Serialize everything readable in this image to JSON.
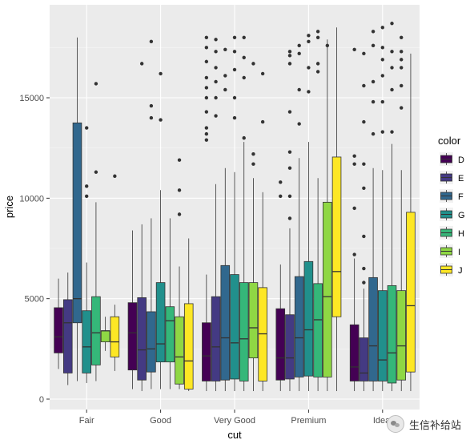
{
  "watermark": {
    "text": "生信补给站",
    "icon": "wechat-icon"
  },
  "chart_data": {
    "type": "boxplot",
    "xlabel": "cut",
    "ylabel": "price",
    "ylim": [
      0,
      19000
    ],
    "yticks": [
      0,
      5000,
      10000,
      15000
    ],
    "grid": true,
    "legend_title": "color",
    "legend_position": "right",
    "categories": [
      "Fair",
      "Good",
      "Very Good",
      "Premium",
      "Ideal"
    ],
    "series": [
      {
        "name": "D",
        "color": "#440154",
        "boxes": [
          {
            "min": 1500,
            "q1": 2300,
            "median": 3100,
            "q3": 4550,
            "max": 6000,
            "outliers": []
          },
          {
            "min": 500,
            "q1": 1450,
            "median": 3300,
            "q3": 4800,
            "max": 8400,
            "outliers": []
          },
          {
            "min": 400,
            "q1": 900,
            "median": 2150,
            "q3": 3800,
            "max": 6200,
            "outliers": [
              18000,
              17500,
              16800,
              16000,
              15500,
              15000,
              14300,
              13500,
              13200,
              12900
            ]
          },
          {
            "min": 400,
            "q1": 950,
            "median": 2050,
            "q3": 4500,
            "max": 6700,
            "outliers": [
              10800,
              10100
            ]
          },
          {
            "min": 400,
            "q1": 900,
            "median": 1600,
            "q3": 3700,
            "max": 7000,
            "outliers": [
              17400,
              12100,
              11700,
              9500,
              7200
            ]
          }
        ]
      },
      {
        "name": "E",
        "color": "#443A83",
        "boxes": [
          {
            "min": 700,
            "q1": 1300,
            "median": 3800,
            "q3": 4950,
            "max": 6300,
            "outliers": []
          },
          {
            "min": 400,
            "q1": 950,
            "median": 2450,
            "q3": 5050,
            "max": 8700,
            "outliers": [
              16700
            ]
          },
          {
            "min": 400,
            "q1": 900,
            "median": 2600,
            "q3": 5100,
            "max": 10700,
            "outliers": [
              17900,
              17300,
              16500,
              15800,
              15000,
              14100
            ]
          },
          {
            "min": 400,
            "q1": 1000,
            "median": 2050,
            "q3": 4200,
            "max": 8500,
            "outliers": [
              17300,
              17100,
              16700,
              14300,
              12300,
              11500,
              10100,
              9000
            ]
          },
          {
            "min": 400,
            "q1": 900,
            "median": 1300,
            "q3": 3050,
            "max": 5500,
            "outliers": [
              17200,
              15600,
              13800,
              11700,
              10500,
              8100,
              6500,
              5800
            ]
          }
        ]
      },
      {
        "name": "F",
        "color": "#31688E",
        "boxes": [
          {
            "min": 900,
            "q1": 3800,
            "median": 5000,
            "q3": 13750,
            "max": 18000,
            "outliers": []
          },
          {
            "min": 500,
            "q1": 1350,
            "median": 2500,
            "q3": 4350,
            "max": 9000,
            "outliers": [
              17800,
              14600,
              14000
            ]
          },
          {
            "min": 400,
            "q1": 950,
            "median": 3050,
            "q3": 6650,
            "max": 11500,
            "outliers": [
              17400,
              16100,
              15400
            ]
          },
          {
            "min": 400,
            "q1": 1100,
            "median": 3050,
            "q3": 6100,
            "max": 12000,
            "outliers": [
              17600,
              17200,
              15400,
              13700
            ]
          },
          {
            "min": 400,
            "q1": 900,
            "median": 2650,
            "q3": 6050,
            "max": 11500,
            "outliers": [
              18300,
              17600,
              15800,
              14800,
              13200
            ]
          }
        ]
      },
      {
        "name": "G",
        "color": "#21908C",
        "boxes": [
          {
            "min": 800,
            "q1": 1300,
            "median": 2600,
            "q3": 4400,
            "max": 6800,
            "outliers": [
              13500,
              10600,
              10100
            ]
          },
          {
            "min": 500,
            "q1": 1850,
            "median": 2750,
            "q3": 5800,
            "max": 10400,
            "outliers": [
              16200,
              13900
            ]
          },
          {
            "min": 400,
            "q1": 1000,
            "median": 2800,
            "q3": 6200,
            "max": 11300,
            "outliers": [
              18000,
              17300,
              16400,
              15000,
              14000
            ]
          },
          {
            "min": 400,
            "q1": 1150,
            "median": 3450,
            "q3": 6850,
            "max": 12800,
            "outliers": [
              18100,
              17800,
              16500,
              15300
            ]
          },
          {
            "min": 400,
            "q1": 900,
            "median": 1950,
            "q3": 5400,
            "max": 11400,
            "outliers": [
              18500,
              17500,
              16900,
              16100,
              14800,
              13300
            ]
          }
        ]
      },
      {
        "name": "H",
        "color": "#35B779",
        "boxes": [
          {
            "min": 900,
            "q1": 1700,
            "median": 3300,
            "q3": 5100,
            "max": 9800,
            "outliers": [
              15700,
              11300
            ]
          },
          {
            "min": 500,
            "q1": 1850,
            "median": 3900,
            "q3": 4600,
            "max": 9000,
            "outliers": []
          },
          {
            "min": 400,
            "q1": 900,
            "median": 3000,
            "q3": 5800,
            "max": 12800,
            "outliers": [
              18000,
              17000,
              16000,
              13000
            ]
          },
          {
            "min": 400,
            "q1": 1100,
            "median": 3950,
            "q3": 5750,
            "max": 11000,
            "outliers": [
              18300,
              18000,
              16700,
              16300
            ]
          },
          {
            "min": 400,
            "q1": 800,
            "median": 2300,
            "q3": 5650,
            "max": 12700,
            "outliers": [
              18700,
              17300,
              16500,
              15400,
              13300
            ]
          }
        ]
      },
      {
        "name": "I",
        "color": "#8FD744",
        "boxes": [
          {
            "min": 2400,
            "q1": 2850,
            "median": 3400,
            "q3": 3400,
            "max": 4100,
            "outliers": []
          },
          {
            "min": 500,
            "q1": 750,
            "median": 2100,
            "q3": 4100,
            "max": 6600,
            "outliers": [
              11900,
              10400,
              9200
            ]
          },
          {
            "min": 400,
            "q1": 2050,
            "median": 3550,
            "q3": 5800,
            "max": 11000,
            "outliers": [
              16700,
              12200,
              11700
            ]
          },
          {
            "min": 400,
            "q1": 1100,
            "median": 5100,
            "q3": 9800,
            "max": 17900,
            "outliers": [
              17600
            ]
          },
          {
            "min": 400,
            "q1": 950,
            "median": 2650,
            "q3": 5400,
            "max": 11400,
            "outliers": [
              18000,
              17300,
              16900,
              16500,
              15600,
              14500
            ]
          }
        ]
      },
      {
        "name": "J",
        "color": "#FDE725",
        "boxes": [
          {
            "min": 1400,
            "q1": 2100,
            "median": 2850,
            "q3": 4100,
            "max": 4700,
            "outliers": [
              11100
            ]
          },
          {
            "min": 400,
            "q1": 500,
            "median": 1900,
            "q3": 4750,
            "max": 8000,
            "outliers": []
          },
          {
            "min": 400,
            "q1": 900,
            "median": 3250,
            "q3": 5550,
            "max": 10300,
            "outliers": [
              16200,
              13800
            ]
          },
          {
            "min": 400,
            "q1": 4100,
            "median": 6350,
            "q3": 12050,
            "max": 18500,
            "outliers": []
          },
          {
            "min": 400,
            "q1": 1350,
            "median": 4650,
            "q3": 9300,
            "max": 17200,
            "outliers": []
          }
        ]
      }
    ]
  }
}
